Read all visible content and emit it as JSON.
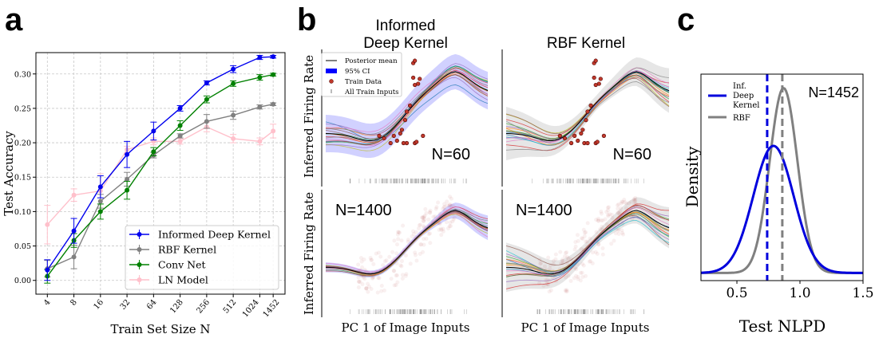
{
  "panels": {
    "a": "a",
    "b": "b",
    "c": "c"
  },
  "chart_data": [
    {
      "panel": "a",
      "type": "line",
      "xlabel": "Train Set Size N",
      "ylabel": "Test Accuracy",
      "x_scale": "log2",
      "categories": [
        "4",
        "8",
        "16",
        "32",
        "64",
        "128",
        "256",
        "512",
        "1024",
        "1452"
      ],
      "x": [
        4,
        8,
        16,
        32,
        64,
        128,
        256,
        512,
        1024,
        1452
      ],
      "yticks": [
        "0.00",
        "0.05",
        "0.10",
        "0.15",
        "0.20",
        "0.25",
        "0.30"
      ],
      "ylim": [
        -0.02,
        0.331
      ],
      "grid": true,
      "legend_placement": "lower-right",
      "series": [
        {
          "name": "Informed Deep Kernel",
          "color": "#0000ee",
          "values": [
            0.015,
            0.072,
            0.136,
            0.183,
            0.217,
            0.25,
            0.287,
            0.307,
            0.324,
            0.325
          ],
          "errors": [
            0.015,
            0.018,
            0.016,
            0.019,
            0.013,
            0.004,
            0.003,
            0.005,
            0.003,
            0.002
          ]
        },
        {
          "name": "RBF Kernel",
          "color": "#808080",
          "values": [
            0.017,
            0.034,
            0.115,
            0.147,
            0.182,
            0.21,
            0.231,
            0.24,
            0.252,
            0.256
          ],
          "errors": [
            0.012,
            0.017,
            0.01,
            0.01,
            0.004,
            0.003,
            0.01,
            0.006,
            0.003,
            0.002
          ]
        },
        {
          "name": "Conv Net",
          "color": "#008000",
          "values": [
            0.006,
            0.058,
            0.1,
            0.131,
            0.187,
            0.225,
            0.263,
            0.286,
            0.295,
            0.299
          ],
          "errors": [
            0.01,
            0.01,
            0.011,
            0.013,
            0.006,
            0.007,
            0.005,
            0.004,
            0.004,
            0.002
          ]
        },
        {
          "name": "LN Model",
          "color": "#ffc0cb",
          "values": [
            0.081,
            0.124,
            0.13,
            0.19,
            0.202,
            0.202,
            0.223,
            0.206,
            0.202,
            0.217
          ],
          "errors": [
            0.028,
            0.009,
            0.025,
            0.005,
            0.005,
            0.004,
            0.007,
            0.006,
            0.005,
            0.01
          ]
        }
      ]
    },
    {
      "panel": "b",
      "type": "line",
      "ylabel": "Inferred Firing Rate",
      "xlabel": "PC 1 of Image Inputs",
      "columns": [
        "Informed\nDeep Kernel",
        "RBF Kernel"
      ],
      "column_titles": {
        "idk_line1": "Informed",
        "idk_line2": "Deep Kernel",
        "rbf": "RBF Kernel"
      },
      "row_labels": {
        "top": "N=60",
        "bottom": "N=1400"
      },
      "legend": [
        "Posterior mean",
        "95% CI",
        "Train Data",
        "All Train Inputs"
      ],
      "colors": {
        "ci_idk": "#0000ff",
        "ci_rbf": "#808080",
        "mean": "#000000",
        "train_data": "#a52a2a"
      }
    },
    {
      "panel": "c",
      "type": "line",
      "xlabel": "Test NLPD",
      "ylabel": "Density",
      "xticks": [
        "0.5",
        "1.0",
        "1.5"
      ],
      "xlim": [
        0.215,
        1.5
      ],
      "annotation": "N=1452",
      "legend_placement": "upper-left",
      "series": [
        {
          "name": "Inf.\nDeep\nKernel",
          "label_lines": [
            "Inf.",
            "Deep",
            "Kernel"
          ],
          "color": "#0000dd",
          "mean": 0.79,
          "std": 0.16,
          "median_line": 0.74
        },
        {
          "name": "RBF",
          "label_lines": [
            "RBF"
          ],
          "color": "#808080",
          "mean": 0.87,
          "std": 0.11,
          "median_line": 0.86
        }
      ]
    }
  ]
}
